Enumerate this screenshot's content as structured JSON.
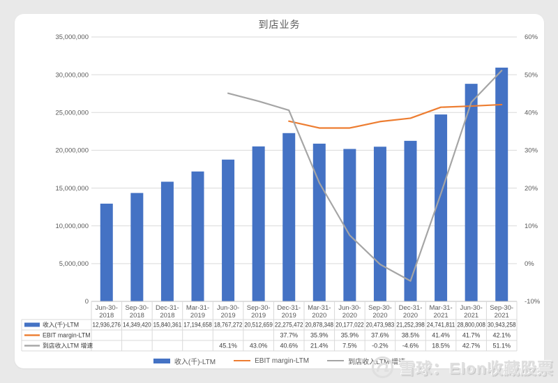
{
  "background": "#e9e9e9",
  "watermark": {
    "text": "雪球：Elon收藏股票",
    "icon": "xueqiu-logo"
  },
  "chart_data": {
    "type": "combo",
    "title": "到店业务",
    "categories": [
      "Jun-30-2018",
      "Sep-30-2018",
      "Dec-31-2018",
      "Mar-31-2019",
      "Jun-30-2019",
      "Sep-30-2019",
      "Dec-31-2019",
      "Mar-31-2020",
      "Jun-30-2020",
      "Sep-30-2020",
      "Dec-31-2020",
      "Mar-31-2021",
      "Jun-30-2021",
      "Sep-30-2021"
    ],
    "series": [
      {
        "name": "收入(千)-LTM",
        "kind": "bar",
        "axis": "left",
        "color": "#4472C4",
        "values": [
          12936276,
          14349420,
          15840361,
          17194658,
          18767272,
          20512659,
          22275472,
          20878348,
          20177022,
          20473983,
          21252398,
          24741811,
          28800008,
          30943258
        ]
      },
      {
        "name": "EBIT margin-LTM",
        "kind": "line",
        "axis": "right",
        "color": "#ED7D31",
        "values": [
          null,
          null,
          null,
          null,
          null,
          null,
          37.7,
          35.9,
          35.9,
          37.6,
          38.5,
          41.4,
          41.7,
          42.1
        ]
      },
      {
        "name": "到店收入LTM 增速",
        "kind": "line",
        "axis": "right",
        "color": "#A5A5A5",
        "values": [
          null,
          null,
          null,
          null,
          45.1,
          43.0,
          40.6,
          21.4,
          7.5,
          -0.2,
          -4.6,
          18.5,
          42.7,
          51.1
        ]
      }
    ],
    "left_axis": {
      "min": 0,
      "max": 35000000,
      "step": 5000000,
      "tick_labels": [
        "0",
        "5,000,000",
        "10,000,000",
        "15,000,000",
        "20,000,000",
        "25,000,000",
        "30,000,000",
        "35,000,000"
      ]
    },
    "right_axis": {
      "min": -10,
      "max": 60,
      "step": 10,
      "tick_labels": [
        "-10%",
        "0%",
        "10%",
        "20%",
        "30%",
        "40%",
        "50%",
        "60%"
      ]
    },
    "grid": true,
    "legend_position": "bottom"
  },
  "data_table": {
    "rows": [
      {
        "label": "收入(千)-LTM",
        "swatch": "bar",
        "color": "#4472C4",
        "values": [
          "12,936,276",
          "14,349,420",
          "15,840,361",
          "17,194,658",
          "18,767,272",
          "20,512,659",
          "22,275,472",
          "20,878,348",
          "20,177,022",
          "20,473,983",
          "21,252,398",
          "24,741,811",
          "28,800,008",
          "30,943,258"
        ]
      },
      {
        "label": "EBIT margin-LTM",
        "swatch": "line",
        "color": "#ED7D31",
        "values": [
          "",
          "",
          "",
          "",
          "",
          "",
          "37.7%",
          "35.9%",
          "35.9%",
          "37.6%",
          "38.5%",
          "41.4%",
          "41.7%",
          "42.1%"
        ]
      },
      {
        "label": "到店收入LTM 增速",
        "swatch": "line",
        "color": "#A5A5A5",
        "values": [
          "",
          "",
          "",
          "",
          "45.1%",
          "43.0%",
          "40.6%",
          "21.4%",
          "7.5%",
          "-0.2%",
          "-4.6%",
          "18.5%",
          "42.7%",
          "51.1%"
        ]
      }
    ]
  },
  "legend": {
    "items": [
      {
        "label": "收入(千)-LTM",
        "swatch": "bar",
        "color": "#4472C4"
      },
      {
        "label": "EBIT margin-LTM",
        "swatch": "line",
        "color": "#ED7D31"
      },
      {
        "label": "到店收入LTM 增速",
        "swatch": "line",
        "color": "#A5A5A5"
      }
    ]
  },
  "colors": {
    "bar_blue": "#4472C4",
    "line_orange": "#ED7D31",
    "line_gray": "#A5A5A5",
    "gridline": "#D9D9D9",
    "axis_line": "#BFBFBF",
    "axis_text": "#595959",
    "table_text": "#3b3b3b",
    "table_border": "#D9D9D9",
    "page_background": "#e9e9e9"
  }
}
